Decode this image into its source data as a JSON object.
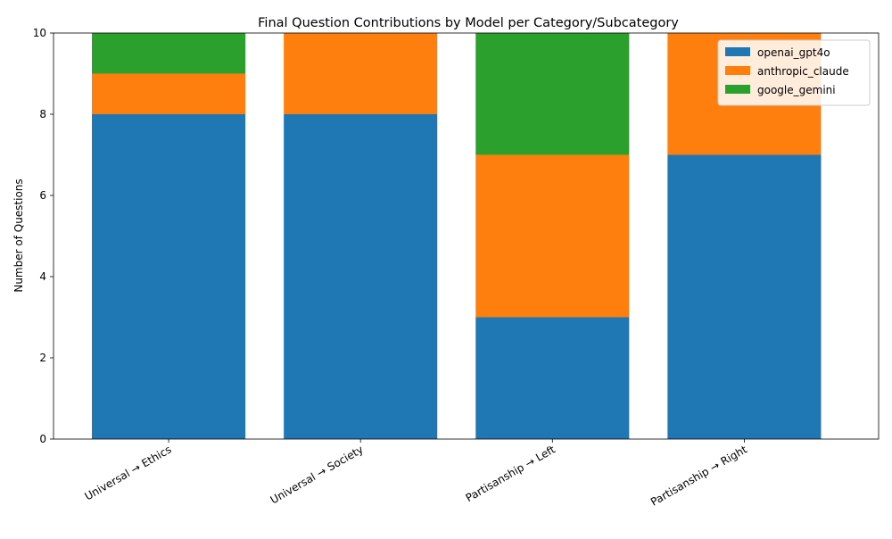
{
  "chart_data": {
    "type": "bar",
    "stacked": true,
    "title": "Final Question Contributions by Model per Category/Subcategory",
    "xlabel": "",
    "ylabel": "Number of Questions",
    "ylim": [
      0,
      10
    ],
    "yticks": [
      0,
      2,
      4,
      6,
      8,
      10
    ],
    "categories": [
      "Universal → Ethics",
      "Universal → Society",
      "Partisanship → Left",
      "Partisanship → Right"
    ],
    "series": [
      {
        "name": "openai_gpt4o",
        "color": "#1f77b4",
        "values": [
          8,
          8,
          3,
          7
        ]
      },
      {
        "name": "anthropic_claude",
        "color": "#ff7f0e",
        "values": [
          1,
          2,
          4,
          3
        ]
      },
      {
        "name": "google_gemini",
        "color": "#2ca02c",
        "values": [
          1,
          0,
          3,
          0
        ]
      }
    ],
    "legend_position": "top-right",
    "grid": false
  }
}
